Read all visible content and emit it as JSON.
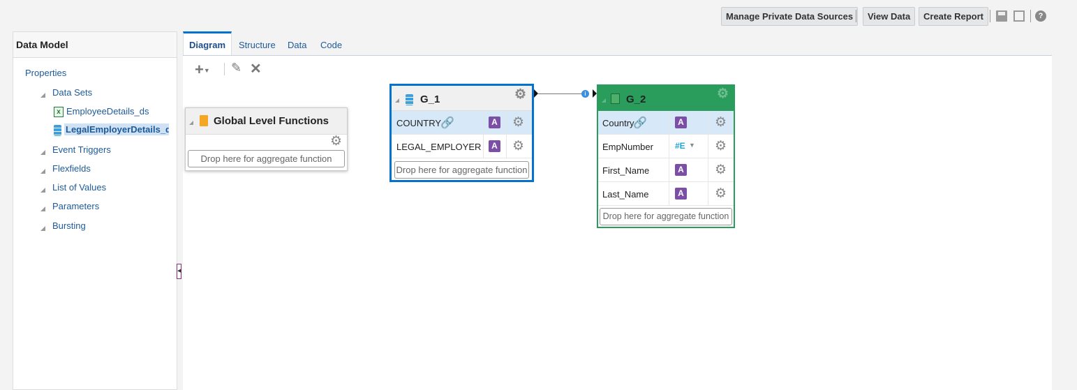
{
  "toolbar": {
    "manage": "Manage Private Data Sources",
    "view_data": "View Data",
    "create_report": "Create Report",
    "icons": [
      "save-icon",
      "save-as-icon",
      "help-icon"
    ]
  },
  "left": {
    "title": "Data Model",
    "properties": "Properties",
    "items": [
      {
        "label": "Data Sets",
        "children": [
          {
            "label": "EmployeeDetails_ds",
            "icon": "excel-icon"
          },
          {
            "label": "LegalEmployerDetails_ds",
            "icon": "database-icon",
            "selected": true
          }
        ]
      },
      {
        "label": "Event Triggers"
      },
      {
        "label": "Flexfields"
      },
      {
        "label": "List of Values"
      },
      {
        "label": "Parameters"
      },
      {
        "label": "Bursting"
      }
    ]
  },
  "tabs": [
    "Diagram",
    "Structure",
    "Data",
    "Code"
  ],
  "active_tab": "Diagram",
  "global": {
    "title": "Global Level Functions",
    "drop": "Drop here for aggregate function"
  },
  "g1": {
    "title": "G_1",
    "rows": [
      {
        "name": "COUNTRY",
        "type": "A",
        "link": true
      },
      {
        "name": "LEGAL_EMPLOYER",
        "type": "A"
      }
    ],
    "drop": "Drop here for aggregate function"
  },
  "g2": {
    "title": "G_2",
    "rows": [
      {
        "name": "Country",
        "type": "A",
        "link": true
      },
      {
        "name": "EmpNumber",
        "type": "#E"
      },
      {
        "name": "First_Name",
        "type": "A"
      },
      {
        "name": "Last_Name",
        "type": "A"
      }
    ],
    "drop": "Drop here for aggregate function"
  },
  "colors": {
    "g1_border": "#0572ce",
    "g2_header": "#2a9d5c",
    "selected_row": "#d7e8f8",
    "type_icon": "#7b4fa6"
  }
}
